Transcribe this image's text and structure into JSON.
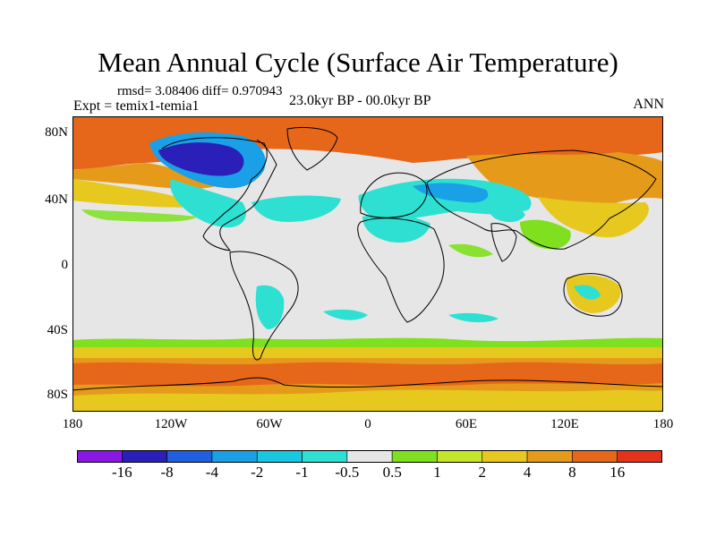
{
  "title": "Mean Annual Cycle (Surface Air Temperature)",
  "stats": "rmsd= 3.08406 diff= 0.970943",
  "experiment": "Expt = temix1-temia1",
  "period": "23.0kyr BP - 00.0kyr BP",
  "season": "ANN",
  "lat_labels": [
    "80N",
    "40N",
    "0",
    "40S",
    "80S"
  ],
  "lon_labels": [
    "180",
    "120W",
    "60W",
    "0",
    "60E",
    "120E",
    "180"
  ],
  "colorbar": {
    "labels": [
      "-16",
      "-8",
      "-4",
      "-2",
      "-1",
      "-0.5",
      "0.5",
      "1",
      "2",
      "4",
      "8",
      "16"
    ],
    "colors": [
      "#8a17e6",
      "#2a1fb8",
      "#1f5fe0",
      "#1aa0e6",
      "#17c8e0",
      "#2de0d2",
      "#e6e6e6",
      "#7ee01e",
      "#c4e62a",
      "#e6c81e",
      "#e69a1a",
      "#e6661a",
      "#e6321a"
    ]
  },
  "map_colors": {
    "neutral": "#e6e6e6",
    "warm_strong": "#e6661a",
    "warm_mid": "#e69a1a",
    "warm_light": "#e6c81e",
    "green": "#7ee01e",
    "cyan": "#2de0d2",
    "blue_light": "#1aa0e6",
    "blue_dark": "#2a1fb8",
    "coast": "#000000"
  }
}
